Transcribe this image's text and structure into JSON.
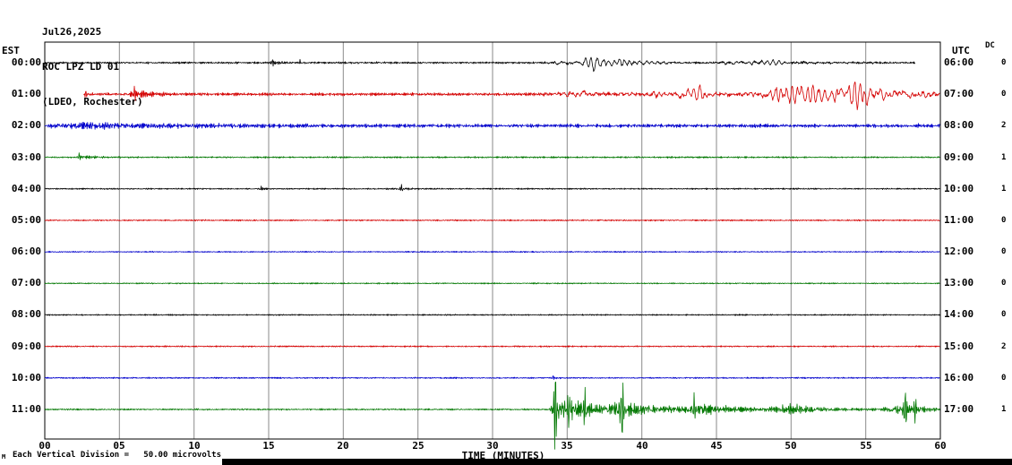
{
  "header": {
    "date": "Jul26,2025",
    "station": "ROC LPZ LD 01",
    "network": "(LDEO, Rochester)"
  },
  "chart_data": {
    "type": "line",
    "title": "ROC LPZ LD 01 seismogram (helicorder)",
    "date": "Jul26,2025",
    "station_info": "(LDEO, Rochester)",
    "xlabel": "TIME (MINUTES)",
    "x_range": [
      0,
      60
    ],
    "x_ticks": [
      "00",
      "05",
      "10",
      "15",
      "20",
      "25",
      "30",
      "35",
      "40",
      "45",
      "50",
      "55",
      "60"
    ],
    "left_axis": "EST",
    "right_axis": "UTC",
    "gain_column_header": "DC",
    "footer_note": "Each Vertical Division =   50.00 microvolts",
    "footer_mark": "M",
    "grid": true,
    "colors": {
      "black": "#000000",
      "red": "#d40000",
      "blue": "#0000cc",
      "green": "#007700"
    },
    "rows": [
      {
        "est": "00:00",
        "utc": "06:00",
        "flag": "0",
        "color": "#000000",
        "start_min": 0,
        "end_min": 58.3,
        "base_amp": 1.2,
        "events": [
          {
            "t0": 33.2,
            "t1": 36.5,
            "t2": 44,
            "amp": 6.5,
            "ch": "lf"
          },
          {
            "t0": 44,
            "t1": 47,
            "t2": 58.2,
            "amp": 3.0,
            "ch": "lf"
          },
          {
            "t0": 15.1,
            "t1": 15.3,
            "t2": 16.8,
            "amp": 1.6,
            "ch": "hf"
          }
        ],
        "spikes": [
          {
            "t": 15.25,
            "amp": 4,
            "w": 0.06,
            "f": 55
          },
          {
            "t": 17.1,
            "amp": 3,
            "w": 0.05,
            "f": 55
          }
        ]
      },
      {
        "est": "01:00",
        "utc": "07:00",
        "flag": "0",
        "color": "#d40000",
        "start_min": 2.6,
        "end_min": 60,
        "base_amp": 1.9,
        "events": [
          {
            "t0": 5.6,
            "t1": 6.1,
            "t2": 8.5,
            "amp": 4.0,
            "ch": "hf"
          },
          {
            "t0": 33,
            "t1": 36,
            "t2": 42,
            "amp": 4.5,
            "ch": "lf"
          },
          {
            "t0": 40,
            "t1": 43.5,
            "t2": 48,
            "amp": 8.0,
            "ch": "lf"
          },
          {
            "t0": 46.5,
            "t1": 50.5,
            "t2": 58,
            "amp": 13.0,
            "ch": "lf"
          },
          {
            "t0": 52,
            "t1": 54.5,
            "t2": 60,
            "amp": 12.0,
            "ch": "lf"
          },
          {
            "t0": 57,
            "t1": 58,
            "t2": 60,
            "amp": 7.0,
            "ch": "lf"
          }
        ],
        "spikes": [
          {
            "t": 2.75,
            "amp": 5,
            "w": 0.06,
            "f": 55
          },
          {
            "t": 6.0,
            "amp": 7,
            "w": 0.08,
            "f": 50
          }
        ]
      },
      {
        "est": "02:00",
        "utc": "08:00",
        "flag": "2",
        "color": "#0000cc",
        "start_min": 0,
        "end_min": 60,
        "base_amp": 2.2,
        "events": [
          {
            "t0": 0,
            "t1": 0.5,
            "t2": 26,
            "amp": 1.8,
            "ch": "hf"
          },
          {
            "t0": 1.5,
            "t1": 3,
            "t2": 9,
            "amp": 1.8,
            "ch": "hf"
          }
        ],
        "spikes": []
      },
      {
        "est": "03:00",
        "utc": "09:00",
        "flag": "1",
        "color": "#007700",
        "start_min": 0,
        "end_min": 60,
        "base_amp": 1.0,
        "events": [
          {
            "t0": 2.1,
            "t1": 2.4,
            "t2": 4.2,
            "amp": 2.2,
            "ch": "hf"
          }
        ],
        "spikes": [
          {
            "t": 2.3,
            "amp": 5,
            "w": 0.07,
            "f": 50
          }
        ]
      },
      {
        "est": "04:00",
        "utc": "10:00",
        "flag": "1",
        "color": "#000000",
        "start_min": 0,
        "end_min": 60,
        "base_amp": 0.85,
        "events": [
          {
            "t0": 23.3,
            "t1": 23.8,
            "t2": 25.8,
            "amp": 1.6,
            "ch": "hf"
          },
          {
            "t0": 14.2,
            "t1": 14.4,
            "t2": 15.2,
            "amp": 0.9,
            "ch": "hf"
          }
        ],
        "spikes": [
          {
            "t": 23.9,
            "amp": 4,
            "w": 0.07,
            "f": 50
          },
          {
            "t": 14.5,
            "amp": 2.5,
            "w": 0.05,
            "f": 55
          }
        ]
      },
      {
        "est": "05:00",
        "utc": "11:00",
        "flag": "0",
        "color": "#d40000",
        "start_min": 0,
        "end_min": 60,
        "base_amp": 0.85,
        "events": [],
        "spikes": []
      },
      {
        "est": "06:00",
        "utc": "12:00",
        "flag": "0",
        "color": "#0000cc",
        "start_min": 0,
        "end_min": 60,
        "base_amp": 0.75,
        "events": [],
        "spikes": []
      },
      {
        "est": "07:00",
        "utc": "13:00",
        "flag": "0",
        "color": "#007700",
        "start_min": 0,
        "end_min": 60,
        "base_amp": 0.75,
        "events": [],
        "spikes": []
      },
      {
        "est": "08:00",
        "utc": "14:00",
        "flag": "0",
        "color": "#000000",
        "start_min": 0,
        "end_min": 60,
        "base_amp": 0.8,
        "events": [],
        "spikes": []
      },
      {
        "est": "09:00",
        "utc": "15:00",
        "flag": "2",
        "color": "#d40000",
        "start_min": 0,
        "end_min": 60,
        "base_amp": 0.85,
        "events": [],
        "spikes": []
      },
      {
        "est": "10:00",
        "utc": "16:00",
        "flag": "0",
        "color": "#0000cc",
        "start_min": 0,
        "end_min": 60,
        "base_amp": 0.85,
        "events": [
          {
            "t0": 33.9,
            "t1": 34.1,
            "t2": 35.2,
            "amp": 1.2,
            "ch": "hf"
          }
        ],
        "spikes": [
          {
            "t": 34.05,
            "amp": 5,
            "w": 0.05,
            "f": 60
          }
        ]
      },
      {
        "est": "11:00",
        "utc": "17:00",
        "flag": "1",
        "color": "#007700",
        "start_min": 0,
        "end_min": 60,
        "base_amp": 0.95,
        "events": [
          {
            "t0": 33.8,
            "t1": 34.4,
            "t2": 37,
            "amp": 14,
            "ch": "hf"
          },
          {
            "t0": 34.5,
            "t1": 35.5,
            "t2": 60,
            "amp": 6,
            "ch": "hf"
          },
          {
            "t0": 37.6,
            "t1": 38.6,
            "t2": 41.5,
            "amp": 7,
            "ch": "hf"
          },
          {
            "t0": 42.5,
            "t1": 44,
            "t2": 47.5,
            "amp": 4.5,
            "ch": "hf"
          },
          {
            "t0": 48.5,
            "t1": 50,
            "t2": 54,
            "amp": 5,
            "ch": "hf"
          },
          {
            "t0": 56,
            "t1": 57.6,
            "t2": 60,
            "amp": 7.5,
            "ch": "hf"
          }
        ],
        "spikes": [
          {
            "t": 34.22,
            "amp": 46,
            "w": 0.12,
            "f": 52
          },
          {
            "t": 35.1,
            "amp": -20,
            "w": 0.1,
            "f": 50
          },
          {
            "t": 36.2,
            "amp": 18,
            "w": 0.1,
            "f": 50
          },
          {
            "t": 38.68,
            "amp": -34,
            "w": 0.11,
            "f": 48
          },
          {
            "t": 43.5,
            "amp": 14,
            "w": 0.1,
            "f": 50
          },
          {
            "t": 57.65,
            "amp": 24,
            "w": 0.1,
            "f": 50
          },
          {
            "t": 58.3,
            "amp": -16,
            "w": 0.09,
            "f": 50
          }
        ]
      }
    ]
  }
}
